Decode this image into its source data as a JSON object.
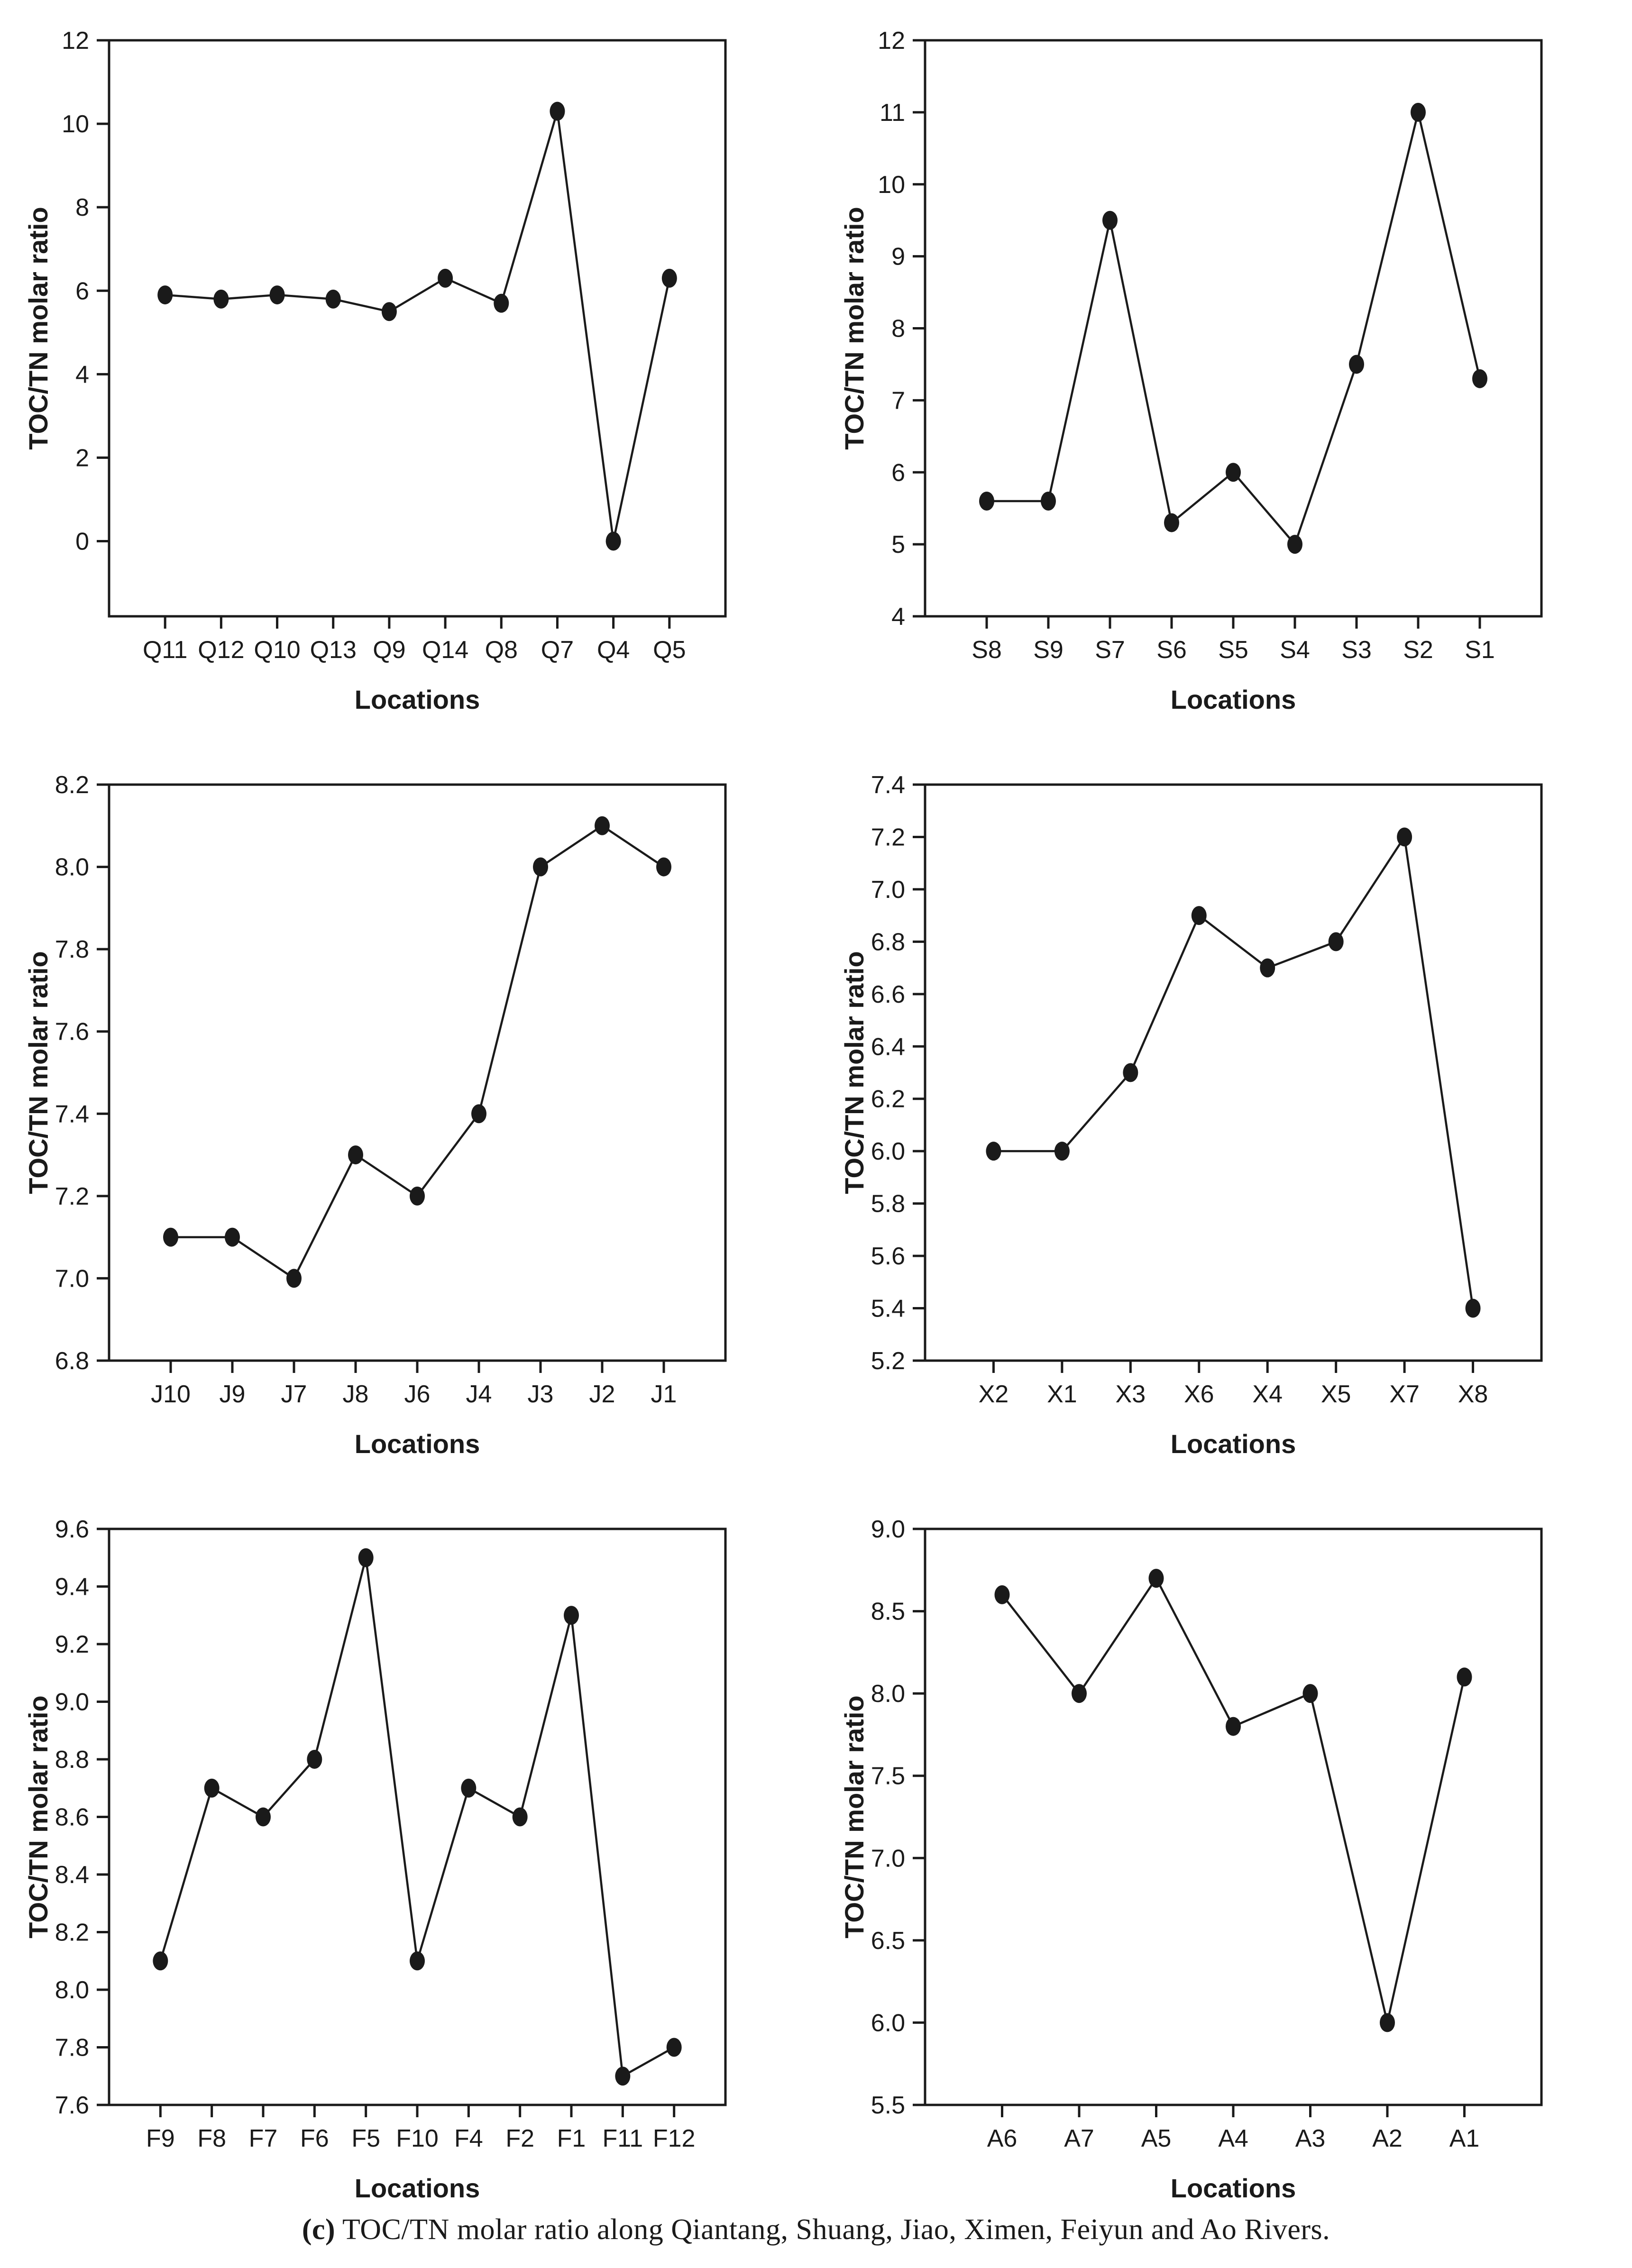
{
  "caption": {
    "label": "(c)",
    "text": " TOC/TN molar ratio along Qiantang, Shuang, Jiao, Ximen, Feiyun and Ao Rivers."
  },
  "colors": {
    "ink": "#1a1a1a",
    "background": "#ffffff"
  },
  "chart_data": [
    {
      "type": "line",
      "river": "Qiantang",
      "xlabel": "Locations",
      "ylabel": "TOC/TN molar ratio",
      "categories": [
        "Q11",
        "Q12",
        "Q10",
        "Q13",
        "Q9",
        "Q14",
        "Q8",
        "Q7",
        "Q4",
        "Q5"
      ],
      "values": [
        5.9,
        5.8,
        5.9,
        5.8,
        5.5,
        6.3,
        5.7,
        10.3,
        0.0,
        6.3
      ],
      "ylim": [
        -1.8,
        12
      ],
      "yticks": [
        0,
        2,
        4,
        6,
        8,
        10,
        12
      ],
      "ytick_labels": [
        "0",
        "2",
        "4",
        "6",
        "8",
        "10",
        "12"
      ],
      "grid": false,
      "legend": "none",
      "marker": "filled-circle"
    },
    {
      "type": "line",
      "river": "Shuang",
      "xlabel": "Locations",
      "ylabel": "TOC/TN molar ratio",
      "categories": [
        "S8",
        "S9",
        "S7",
        "S6",
        "S5",
        "S4",
        "S3",
        "S2",
        "S1"
      ],
      "values": [
        5.6,
        5.6,
        9.5,
        5.3,
        6.0,
        5.0,
        7.5,
        11.0,
        7.3
      ],
      "ylim": [
        4,
        12
      ],
      "yticks": [
        4,
        5,
        6,
        7,
        8,
        9,
        10,
        11,
        12
      ],
      "ytick_labels": [
        "4",
        "5",
        "6",
        "7",
        "8",
        "9",
        "10",
        "11",
        "12"
      ],
      "grid": false,
      "legend": "none",
      "marker": "filled-circle"
    },
    {
      "type": "line",
      "river": "Jiao",
      "xlabel": "Locations",
      "ylabel": "TOC/TN molar ratio",
      "categories": [
        "J10",
        "J9",
        "J7",
        "J8",
        "J6",
        "J4",
        "J3",
        "J2",
        "J1"
      ],
      "values": [
        7.1,
        7.1,
        7.0,
        7.3,
        7.2,
        7.4,
        8.0,
        8.1,
        8.0
      ],
      "ylim": [
        6.8,
        8.2
      ],
      "yticks": [
        6.8,
        7.0,
        7.2,
        7.4,
        7.6,
        7.8,
        8.0,
        8.2
      ],
      "ytick_labels": [
        "6.8",
        "7.0",
        "7.2",
        "7.4",
        "7.6",
        "7.8",
        "8.0",
        "8.2"
      ],
      "grid": false,
      "legend": "none",
      "marker": "filled-circle"
    },
    {
      "type": "line",
      "river": "Ximen",
      "xlabel": "Locations",
      "ylabel": "TOC/TN molar ratio",
      "categories": [
        "X2",
        "X1",
        "X3",
        "X6",
        "X4",
        "X5",
        "X7",
        "X8"
      ],
      "values": [
        6.0,
        6.0,
        6.3,
        6.9,
        6.7,
        6.8,
        7.2,
        5.4
      ],
      "ylim": [
        5.2,
        7.4
      ],
      "yticks": [
        5.2,
        5.4,
        5.6,
        5.8,
        6.0,
        6.2,
        6.4,
        6.6,
        6.8,
        7.0,
        7.2,
        7.4
      ],
      "ytick_labels": [
        "5.2",
        "5.4",
        "5.6",
        "5.8",
        "6.0",
        "6.2",
        "6.4",
        "6.6",
        "6.8",
        "7.0",
        "7.2",
        "7.4"
      ],
      "grid": false,
      "legend": "none",
      "marker": "filled-circle"
    },
    {
      "type": "line",
      "river": "Feiyun",
      "xlabel": "Locations",
      "ylabel": "TOC/TN molar ratio",
      "categories": [
        "F9",
        "F8",
        "F7",
        "F6",
        "F5",
        "F10",
        "F4",
        "F2",
        "F1",
        "F11",
        "F12"
      ],
      "values": [
        8.1,
        8.7,
        8.6,
        8.8,
        9.5,
        8.1,
        8.7,
        8.6,
        9.3,
        7.7,
        7.8
      ],
      "ylim": [
        7.6,
        9.6
      ],
      "yticks": [
        7.6,
        7.8,
        8.0,
        8.2,
        8.4,
        8.6,
        8.8,
        9.0,
        9.2,
        9.4,
        9.6
      ],
      "ytick_labels": [
        "7.6",
        "7.8",
        "8.0",
        "8.2",
        "8.4",
        "8.6",
        "8.8",
        "9.0",
        "9.2",
        "9.4",
        "9.6"
      ],
      "grid": false,
      "legend": "none",
      "marker": "filled-circle"
    },
    {
      "type": "line",
      "river": "Ao",
      "xlabel": "Locations",
      "ylabel": "TOC/TN molar ratio",
      "categories": [
        "A6",
        "A7",
        "A5",
        "A4",
        "A3",
        "A2",
        "A1"
      ],
      "values": [
        8.6,
        8.0,
        8.7,
        7.8,
        8.0,
        6.0,
        8.1
      ],
      "ylim": [
        5.5,
        9.0
      ],
      "yticks": [
        5.5,
        6.0,
        6.5,
        7.0,
        7.5,
        8.0,
        8.5,
        9.0
      ],
      "ytick_labels": [
        "5.5",
        "6.0",
        "6.5",
        "7.0",
        "7.5",
        "8.0",
        "8.5",
        "9.0"
      ],
      "grid": false,
      "legend": "none",
      "marker": "filled-circle"
    }
  ]
}
